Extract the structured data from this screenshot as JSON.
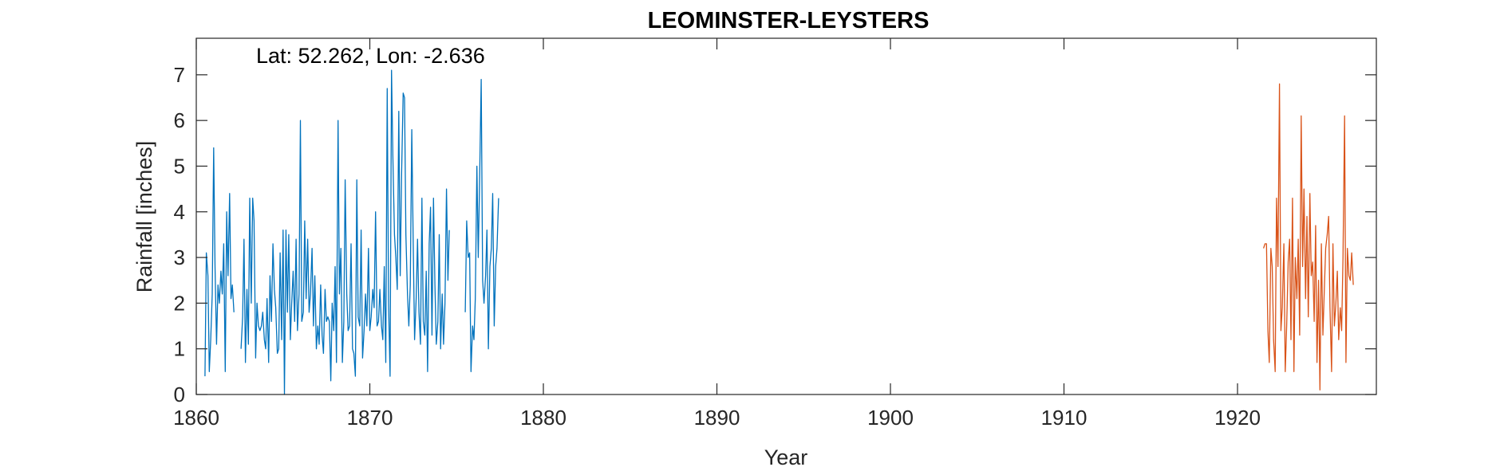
{
  "chart_data": {
    "type": "line",
    "title": "LEOMINSTER-LEYSTERS",
    "xlabel": "Year",
    "ylabel": "Rainfall [inches]",
    "annotation": "Lat: 52.262, Lon: -2.636",
    "xlim": [
      1860,
      1928
    ],
    "ylim": [
      0,
      7.8
    ],
    "xticks": [
      1860,
      1870,
      1880,
      1890,
      1900,
      1910,
      1920
    ],
    "yticks": [
      0,
      1,
      2,
      3,
      4,
      5,
      6,
      7
    ],
    "grid": false,
    "legend": "none",
    "colors": {
      "series1": "#0072BD",
      "series2": "#D95319"
    },
    "series": [
      {
        "segments": [
          {
            "x": [
              1860.5,
              1860.58,
              1860.67,
              1860.75,
              1860.83,
              1860.92,
              1861.0,
              1861.08,
              1861.17,
              1861.25,
              1861.33,
              1861.42,
              1861.5,
              1861.58,
              1861.67,
              1861.75,
              1861.83,
              1861.92,
              1862.0,
              1862.08,
              1862.17
            ],
            "y": [
              0.4,
              3.1,
              2.6,
              0.5,
              1.2,
              2.2,
              5.4,
              2.8,
              1.1,
              2.4,
              2.0,
              2.7,
              2.2,
              3.3,
              0.5,
              4.0,
              2.6,
              4.4,
              2.1,
              2.4,
              1.8
            ]
          },
          {
            "x": [
              1862.58,
              1862.67,
              1862.75,
              1862.83,
              1862.92,
              1863.0,
              1863.08,
              1863.17,
              1863.25,
              1863.33,
              1863.42,
              1863.5,
              1863.58,
              1863.67,
              1863.75,
              1863.83,
              1863.92,
              1864.0,
              1864.08,
              1864.17,
              1864.25,
              1864.33,
              1864.42,
              1864.5,
              1864.58,
              1864.67,
              1864.75,
              1864.83,
              1864.92,
              1865.0,
              1865.08,
              1865.17,
              1865.25,
              1865.33,
              1865.42,
              1865.5,
              1865.58,
              1865.67,
              1865.75,
              1865.83,
              1865.92,
              1866.0,
              1866.08,
              1866.17,
              1866.25,
              1866.33,
              1866.42,
              1866.5,
              1866.58,
              1866.67,
              1866.75,
              1866.83,
              1866.92,
              1867.0,
              1867.08,
              1867.17,
              1867.25,
              1867.33,
              1867.42,
              1867.5,
              1867.58,
              1867.67,
              1867.75,
              1867.83,
              1867.92,
              1868.0,
              1868.08,
              1868.17,
              1868.25,
              1868.33,
              1868.42,
              1868.5,
              1868.58,
              1868.67,
              1868.75,
              1868.83,
              1868.92,
              1869.0,
              1869.08,
              1869.17,
              1869.25,
              1869.33,
              1869.42,
              1869.5,
              1869.58,
              1869.67,
              1869.75,
              1869.83,
              1869.92,
              1870.0,
              1870.08,
              1870.17,
              1870.25,
              1870.33,
              1870.42,
              1870.5,
              1870.58,
              1870.67,
              1870.75,
              1870.83,
              1870.92,
              1871.0,
              1871.08,
              1871.17,
              1871.25,
              1871.33,
              1871.42,
              1871.5,
              1871.58,
              1871.67,
              1871.75,
              1871.83,
              1871.92,
              1872.0,
              1872.08,
              1872.17,
              1872.25,
              1872.33,
              1872.42,
              1872.5,
              1872.58,
              1872.67,
              1872.75,
              1872.83,
              1872.92,
              1873.0,
              1873.08,
              1873.17,
              1873.25,
              1873.33,
              1873.42,
              1873.5,
              1873.58,
              1873.67,
              1873.75,
              1873.83,
              1873.92,
              1874.0,
              1874.08,
              1874.17,
              1874.25,
              1874.33,
              1874.42,
              1874.5,
              1874.58
            ],
            "y": [
              1.0,
              1.7,
              3.4,
              0.7,
              2.3,
              1.1,
              4.3,
              2.0,
              4.3,
              3.8,
              0.8,
              2.0,
              1.5,
              1.4,
              1.5,
              1.8,
              1.2,
              1.0,
              2.1,
              0.7,
              2.6,
              1.6,
              3.3,
              2.3,
              1.9,
              0.9,
              1.0,
              3.1,
              1.2,
              3.6,
              0.0,
              3.6,
              1.8,
              3.5,
              1.2,
              2.0,
              2.7,
              1.6,
              3.4,
              1.4,
              2.2,
              6.0,
              1.6,
              1.8,
              3.8,
              2.1,
              3.4,
              1.8,
              2.2,
              3.2,
              1.5,
              2.6,
              1.0,
              1.5,
              1.1,
              2.4,
              1.3,
              0.9,
              2.3,
              1.6,
              1.7,
              1.6,
              0.3,
              2.0,
              1.4,
              2.8,
              0.7,
              6.0,
              2.2,
              3.2,
              0.7,
              1.6,
              4.7,
              2.2,
              1.4,
              1.5,
              3.3,
              1.0,
              0.9,
              0.4,
              4.7,
              1.7,
              1.5,
              3.6,
              0.8,
              1.4,
              2.2,
              1.5,
              3.2,
              1.4,
              1.7,
              2.3,
              1.9,
              4.0,
              1.5,
              1.6,
              2.3,
              1.5,
              1.2,
              2.8,
              0.7,
              6.7,
              2.0,
              0.4,
              7.1,
              5.2,
              3.5,
              3.0,
              2.3,
              6.2,
              2.6,
              4.8,
              6.6,
              6.5,
              3.5,
              2.2,
              1.5,
              2.4,
              5.8,
              3.3,
              1.2,
              2.1,
              3.4,
              1.8,
              1.1,
              4.3,
              1.6,
              1.3,
              2.7,
              0.5,
              3.3,
              4.1,
              1.3,
              4.3,
              2.4,
              1.1,
              1.6,
              3.5,
              1.0,
              2.2,
              1.1,
              2.0,
              4.5,
              2.5,
              3.6
            ]
          },
          {
            "x": [
              1875.5,
              1875.58,
              1875.67,
              1875.75,
              1875.83,
              1875.92,
              1876.0,
              1876.08,
              1876.17,
              1876.25,
              1876.33,
              1876.42,
              1876.5,
              1876.58,
              1876.67,
              1876.75,
              1876.83,
              1876.92,
              1877.0,
              1877.08,
              1877.17,
              1877.25,
              1877.33,
              1877.42
            ],
            "y": [
              1.8,
              3.8,
              3.0,
              3.1,
              0.5,
              1.5,
              1.2,
              2.1,
              5.0,
              3.0,
              4.8,
              6.9,
              2.5,
              2.0,
              2.6,
              3.6,
              1.0,
              2.8,
              3.2,
              4.4,
              1.5,
              2.8,
              3.2,
              4.3
            ]
          }
        ]
      },
      {
        "segments": [
          {
            "x": [
              1921.5,
              1921.58,
              1921.67,
              1921.75,
              1921.83,
              1921.92,
              1922.0,
              1922.08,
              1922.17,
              1922.25,
              1922.33,
              1922.42,
              1922.5,
              1922.58,
              1922.67,
              1922.75,
              1922.83,
              1922.92,
              1923.0,
              1923.08,
              1923.17,
              1923.25,
              1923.33,
              1923.42,
              1923.5,
              1923.58,
              1923.67,
              1923.75,
              1923.83,
              1923.92,
              1924.0,
              1924.08,
              1924.17,
              1924.25,
              1924.33,
              1924.42,
              1924.5,
              1924.58,
              1924.67,
              1924.75,
              1924.83,
              1924.92,
              1925.0,
              1925.08,
              1925.17,
              1925.25,
              1925.33,
              1925.42,
              1925.5,
              1925.58,
              1925.67,
              1925.75,
              1925.83,
              1925.92,
              1926.0,
              1926.08,
              1926.17,
              1926.25,
              1926.33,
              1926.42,
              1926.5,
              1926.58,
              1926.67
            ],
            "y": [
              3.2,
              3.3,
              3.3,
              1.4,
              0.7,
              3.2,
              2.8,
              1.2,
              0.5,
              4.3,
              2.8,
              6.8,
              1.4,
              1.9,
              3.3,
              0.5,
              1.5,
              2.9,
              3.4,
              1.2,
              4.3,
              0.5,
              3.0,
              2.1,
              3.4,
              1.3,
              6.1,
              2.8,
              4.5,
              2.1,
              3.9,
              1.7,
              4.4,
              2.6,
              2.9,
              1.6,
              3.7,
              0.7,
              2.5,
              0.1,
              3.3,
              1.3,
              2.3,
              3.2,
              3.5,
              3.9,
              1.9,
              0.5,
              3.3,
              1.5,
              2.0,
              2.7,
              1.2,
              1.9,
              1.4,
              3.0,
              6.1,
              0.7,
              3.2,
              2.6,
              2.5,
              3.1,
              2.4
            ]
          }
        ]
      }
    ]
  }
}
